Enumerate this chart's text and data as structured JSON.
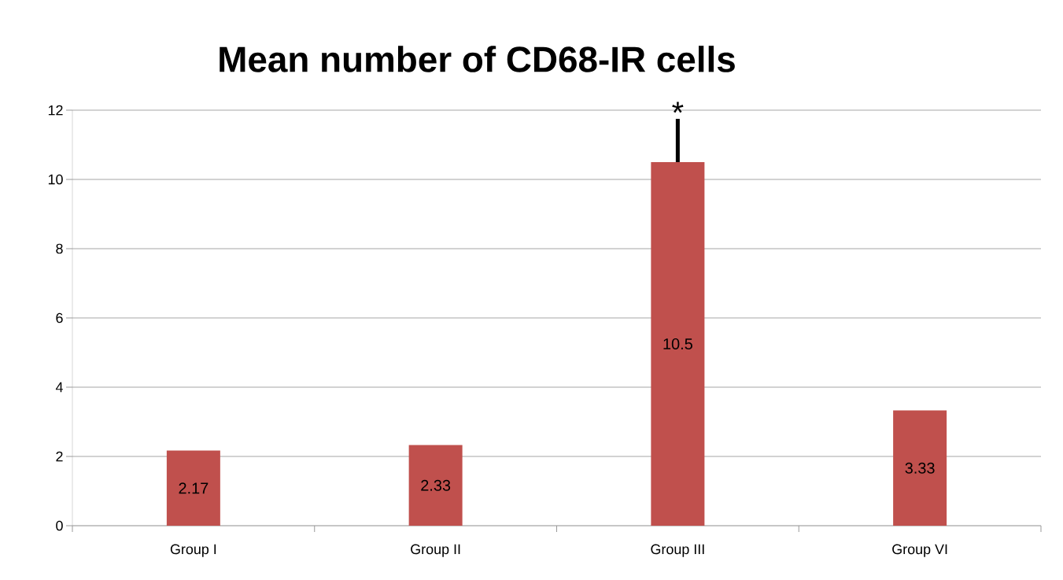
{
  "chart_data": {
    "type": "bar",
    "title": "Mean number of CD68-IR cells",
    "categories": [
      "Group I",
      "Group II",
      "Group III",
      "Group VI"
    ],
    "values": [
      2.17,
      2.33,
      10.5,
      3.33
    ],
    "errors": [
      null,
      null,
      [
        10.5,
        11.75
      ],
      null
    ],
    "color": "#c0504d",
    "ylim": [
      0,
      12
    ],
    "yticks": [
      0,
      2,
      4,
      6,
      8,
      10,
      12
    ],
    "grid": "y",
    "data_labels": true,
    "annotations": [
      "*"
    ]
  }
}
